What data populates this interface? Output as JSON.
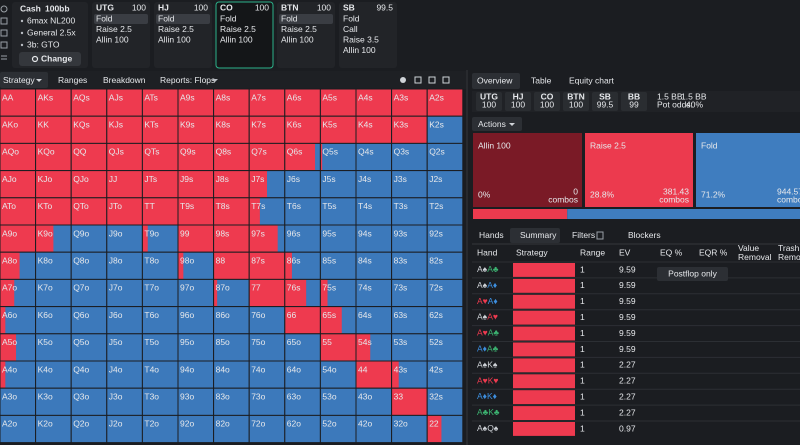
{
  "sidebar": {
    "game": "Cash",
    "stack": "100bb",
    "items": [
      "6max NL200",
      "General 2.5x",
      "3b: GTO"
    ],
    "button": "Change"
  },
  "positions": [
    {
      "name": "UTG",
      "stack": 100,
      "actions": [
        "Fold",
        "Raise 2.5",
        "Allin 100"
      ],
      "selected_action": 0,
      "active": false
    },
    {
      "name": "HJ",
      "stack": 100,
      "actions": [
        "Fold",
        "Raise 2.5",
        "Allin 100"
      ],
      "selected_action": 0,
      "active": false
    },
    {
      "name": "CO",
      "stack": 100,
      "actions": [
        "Fold",
        "Raise 2.5",
        "Allin 100"
      ],
      "active": true
    },
    {
      "name": "BTN",
      "stack": 100,
      "actions": [
        "Fold",
        "Raise 2.5",
        "Allin 100"
      ],
      "selected_action": 0,
      "active": false
    },
    {
      "name": "SB",
      "stack": 99.5,
      "actions": [
        "Fold",
        "Call",
        "Raise 3.5",
        "Allin 100"
      ],
      "active": false
    }
  ],
  "left_tabs": [
    "Strategy",
    "Ranges",
    "Breakdown",
    "Reports: Flops"
  ],
  "matrix": {
    "raise_color": "#ee3a4f",
    "fold_color": "#3c79bb",
    "hands": [
      [
        "AA",
        "AKs",
        "AQs",
        "AJs",
        "ATs",
        "A9s",
        "A8s",
        "A7s",
        "A6s",
        "A5s",
        "A4s",
        "A3s",
        "A2s"
      ],
      [
        "AKo",
        "KK",
        "KQs",
        "KJs",
        "KTs",
        "K9s",
        "K8s",
        "K7s",
        "K6s",
        "K5s",
        "K4s",
        "K3s",
        "K2s"
      ],
      [
        "AQo",
        "KQo",
        "QQ",
        "QJs",
        "QTs",
        "Q9s",
        "Q8s",
        "Q7s",
        "Q6s",
        "Q5s",
        "Q4s",
        "Q3s",
        "Q2s"
      ],
      [
        "AJo",
        "KJo",
        "QJo",
        "JJ",
        "JTs",
        "J9s",
        "J8s",
        "J7s",
        "J6s",
        "J5s",
        "J4s",
        "J3s",
        "J2s"
      ],
      [
        "ATo",
        "KTo",
        "QTo",
        "JTo",
        "TT",
        "T9s",
        "T8s",
        "T7s",
        "T6s",
        "T5s",
        "T4s",
        "T3s",
        "T2s"
      ],
      [
        "A9o",
        "K9o",
        "Q9o",
        "J9o",
        "T9o",
        "99",
        "98s",
        "97s",
        "96s",
        "95s",
        "94s",
        "93s",
        "92s"
      ],
      [
        "A8o",
        "K8o",
        "Q8o",
        "J8o",
        "T8o",
        "98o",
        "88",
        "87s",
        "86s",
        "85s",
        "84s",
        "83s",
        "82s"
      ],
      [
        "A7o",
        "K7o",
        "Q7o",
        "J7o",
        "T7o",
        "97o",
        "87o",
        "77",
        "76s",
        "75s",
        "74s",
        "73s",
        "72s"
      ],
      [
        "A6o",
        "K6o",
        "Q6o",
        "J6o",
        "T6o",
        "96o",
        "86o",
        "76o",
        "66",
        "65s",
        "64s",
        "63s",
        "62s"
      ],
      [
        "A5o",
        "K5o",
        "Q5o",
        "J5o",
        "T5o",
        "95o",
        "85o",
        "75o",
        "65o",
        "55",
        "54s",
        "53s",
        "52s"
      ],
      [
        "A4o",
        "K4o",
        "Q4o",
        "J4o",
        "T4o",
        "94o",
        "84o",
        "74o",
        "64o",
        "54o",
        "44",
        "43s",
        "42s"
      ],
      [
        "A3o",
        "K3o",
        "Q3o",
        "J3o",
        "T3o",
        "93o",
        "83o",
        "73o",
        "63o",
        "53o",
        "43o",
        "33",
        "32s"
      ],
      [
        "A2o",
        "K2o",
        "Q2o",
        "J2o",
        "T2o",
        "92o",
        "82o",
        "72o",
        "62o",
        "52o",
        "42o",
        "32o",
        "22"
      ]
    ],
    "raise": [
      [
        100,
        100,
        100,
        100,
        100,
        100,
        100,
        100,
        100,
        100,
        100,
        100,
        100
      ],
      [
        100,
        100,
        100,
        100,
        100,
        100,
        100,
        100,
        100,
        100,
        100,
        100,
        0
      ],
      [
        100,
        100,
        100,
        100,
        100,
        100,
        100,
        100,
        85,
        5,
        0,
        0,
        0
      ],
      [
        100,
        100,
        100,
        100,
        100,
        100,
        100,
        50,
        0,
        0,
        0,
        0,
        0
      ],
      [
        100,
        100,
        100,
        100,
        100,
        100,
        100,
        30,
        0,
        0,
        0,
        0,
        0
      ],
      [
        100,
        50,
        0,
        0,
        15,
        100,
        100,
        80,
        0,
        0,
        0,
        0,
        0
      ],
      [
        55,
        0,
        0,
        0,
        0,
        15,
        100,
        100,
        20,
        0,
        0,
        0,
        0
      ],
      [
        40,
        0,
        0,
        0,
        0,
        0,
        10,
        100,
        60,
        20,
        0,
        0,
        0
      ],
      [
        15,
        0,
        0,
        0,
        0,
        0,
        0,
        0,
        100,
        60,
        0,
        0,
        0
      ],
      [
        45,
        0,
        0,
        0,
        0,
        0,
        0,
        0,
        0,
        100,
        40,
        0,
        0
      ],
      [
        15,
        0,
        0,
        0,
        0,
        0,
        0,
        0,
        0,
        0,
        100,
        20,
        0
      ],
      [
        0,
        0,
        0,
        0,
        0,
        0,
        0,
        0,
        0,
        0,
        0,
        100,
        0
      ],
      [
        0,
        0,
        0,
        0,
        0,
        0,
        0,
        0,
        0,
        0,
        0,
        0,
        40
      ]
    ]
  },
  "right_tabs": [
    "Overview",
    "Table",
    "Equity chart"
  ],
  "strip": [
    {
      "name": "UTG",
      "stack": 100,
      "color": "#6b6f76"
    },
    {
      "name": "HJ",
      "stack": 100,
      "color": "#6b6f76"
    },
    {
      "name": "CO",
      "stack": 100,
      "color": "#2bb38a"
    },
    {
      "name": "BTN",
      "stack": 100,
      "color": "#e6e8eb"
    },
    {
      "name": "SB",
      "stack": 99.5,
      "color": "#e6e8eb"
    },
    {
      "name": "BB",
      "stack": 99,
      "color": "#e6e8eb"
    }
  ],
  "blinds": [
    "1.5 BB",
    "1.5 BB"
  ],
  "pot_odds": {
    "label": "Pot odds:",
    "value": "40%"
  },
  "actions_button": "Actions",
  "actions": [
    {
      "name": "Allin 100",
      "freq": 0,
      "freq_label": "0%",
      "combos": 0,
      "combos_label": "combos",
      "color": "#7a1a26"
    },
    {
      "name": "Raise 2.5",
      "freq": 28.8,
      "freq_label": "28.8%",
      "combos": 381.43,
      "combos_label": "combos",
      "color": "#ec3a4e"
    },
    {
      "name": "Fold",
      "freq": 71.2,
      "freq_label": "71.2%",
      "combos": 944.57,
      "combos_label": "combos",
      "color": "#3f7dbf"
    }
  ],
  "hand_tabs": [
    "Hands",
    "Summary",
    "Filters",
    "Blockers"
  ],
  "table": {
    "columns": [
      "Hand",
      "Strategy",
      "Range",
      "EV",
      "EQ %",
      "EQR %",
      "Value Removal",
      "Trash Removal"
    ],
    "note": "Postflop only",
    "rows": [
      {
        "hand": "A♠A♣",
        "strategy": 100,
        "range": 1,
        "ev": 9.59
      },
      {
        "hand": "A♠A♦",
        "strategy": 100,
        "range": 1,
        "ev": 9.59
      },
      {
        "hand": "A♥A♦",
        "strategy": 100,
        "range": 1,
        "ev": 9.59
      },
      {
        "hand": "A♠A♥",
        "strategy": 100,
        "range": 1,
        "ev": 9.59
      },
      {
        "hand": "A♥A♣",
        "strategy": 100,
        "range": 1,
        "ev": 9.59
      },
      {
        "hand": "A♦A♣",
        "strategy": 100,
        "range": 1,
        "ev": 9.59
      },
      {
        "hand": "A♠K♠",
        "strategy": 100,
        "range": 1,
        "ev": 2.27
      },
      {
        "hand": "A♥K♥",
        "strategy": 100,
        "range": 1,
        "ev": 2.27
      },
      {
        "hand": "A♦K♦",
        "strategy": 100,
        "range": 1,
        "ev": 2.27
      },
      {
        "hand": "A♣K♣",
        "strategy": 100,
        "range": 1,
        "ev": 2.27
      },
      {
        "hand": "A♠Q♠",
        "strategy": 100,
        "range": 1,
        "ev": 0.97
      }
    ]
  }
}
